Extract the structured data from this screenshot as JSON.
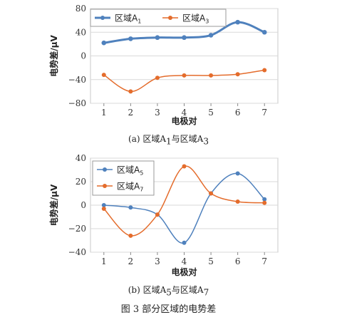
{
  "chart_data": [
    {
      "type": "line",
      "panel_caption": "(a)  区域A1与区域A3",
      "caption_parts": [
        "(a)  区域A",
        "1",
        "与区域A",
        "3"
      ],
      "xlabel": "电极对",
      "ylabel": "电势差/μV",
      "x": [
        1,
        2,
        3,
        4,
        5,
        6,
        7
      ],
      "xlim": [
        0.5,
        7.5
      ],
      "ylim": [
        -80,
        80
      ],
      "yticks": [
        -80,
        -40,
        0,
        40,
        80
      ],
      "ytick_labels": [
        "−80",
        "−40",
        "0",
        "40",
        "80"
      ],
      "grid": true,
      "legend": "top-left",
      "series": [
        {
          "name": "区域A1",
          "legend_parts": [
            "区域A",
            "1"
          ],
          "color": "#4f81bd",
          "width": "thick",
          "values": [
            22,
            29,
            31,
            31,
            35,
            57,
            40
          ]
        },
        {
          "name": "区域A3",
          "legend_parts": [
            "区域A",
            "3"
          ],
          "color": "#e46c2c",
          "width": "thin",
          "values": [
            -32,
            -60,
            -37,
            -33,
            -33,
            -31,
            -24
          ]
        }
      ]
    },
    {
      "type": "line",
      "panel_caption": "(b)  区域A5与区域A7",
      "caption_parts": [
        "(b)  区域A",
        "5",
        "与区域A",
        "7"
      ],
      "xlabel": "电极对",
      "ylabel": "电势差/μV",
      "x": [
        1,
        2,
        3,
        4,
        5,
        6,
        7
      ],
      "xlim": [
        0.5,
        7.5
      ],
      "ylim": [
        -40,
        40
      ],
      "yticks": [
        -40,
        -20,
        0,
        20,
        40
      ],
      "ytick_labels": [
        "−40",
        "−20",
        "0",
        "20",
        "40"
      ],
      "grid": true,
      "legend": "top-left",
      "series": [
        {
          "name": "区域A5",
          "legend_parts": [
            "区域A",
            "5"
          ],
          "color": "#4f81bd",
          "width": "thin",
          "values": [
            0,
            -2,
            -8,
            -32,
            10,
            27,
            5
          ]
        },
        {
          "name": "区域A7",
          "legend_parts": [
            "区域A",
            "7"
          ],
          "color": "#e46c2c",
          "width": "thin",
          "values": [
            -3,
            -26,
            -8,
            33,
            10,
            3,
            2
          ]
        }
      ]
    }
  ],
  "figure_caption": "图 3    部分区域的电势差"
}
